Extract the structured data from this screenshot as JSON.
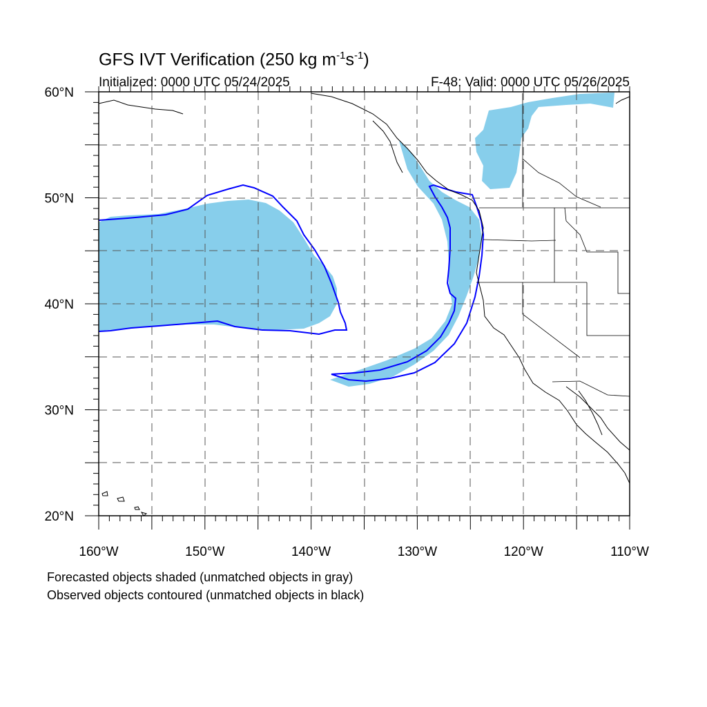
{
  "title": {
    "main": "GFS IVT Verification (250 kg m",
    "sup1": "-1",
    "mid": "s",
    "sup2": "-1",
    "end": ")"
  },
  "subtitle_left": "Initialized: 0000 UTC 05/24/2025",
  "subtitle_right": "F-48: Valid: 0000 UTC 05/26/2025",
  "footer": [
    "Forecasted objects shaded (unmatched objects in gray)",
    "Observed objects contoured (unmatched objects in black)"
  ],
  "map": {
    "lon_range": [
      -160,
      -110
    ],
    "lat_range": [
      20,
      60
    ],
    "lat_labels": [
      {
        "lat": 60,
        "text": "60°N"
      },
      {
        "lat": 50,
        "text": "50°N"
      },
      {
        "lat": 40,
        "text": "40°N"
      },
      {
        "lat": 30,
        "text": "30°N"
      },
      {
        "lat": 20,
        "text": "20°N"
      }
    ],
    "lon_labels": [
      {
        "lon": -160,
        "text": "160°W"
      },
      {
        "lon": -150,
        "text": "150°W"
      },
      {
        "lon": -140,
        "text": "140°W"
      },
      {
        "lon": -130,
        "text": "130°W"
      },
      {
        "lon": -120,
        "text": "120°W"
      },
      {
        "lon": -110,
        "text": "110°W"
      }
    ],
    "gridline_lats": [
      25,
      30,
      35,
      40,
      45,
      50,
      55
    ],
    "gridline_lons": [
      -155,
      -150,
      -145,
      -140,
      -135,
      -130,
      -125,
      -120,
      -115
    ],
    "colors": {
      "forecast_fill": "#87ceeb",
      "observed_contour": "#0000ff",
      "coast": "#000000",
      "grid": "#555555"
    }
  }
}
